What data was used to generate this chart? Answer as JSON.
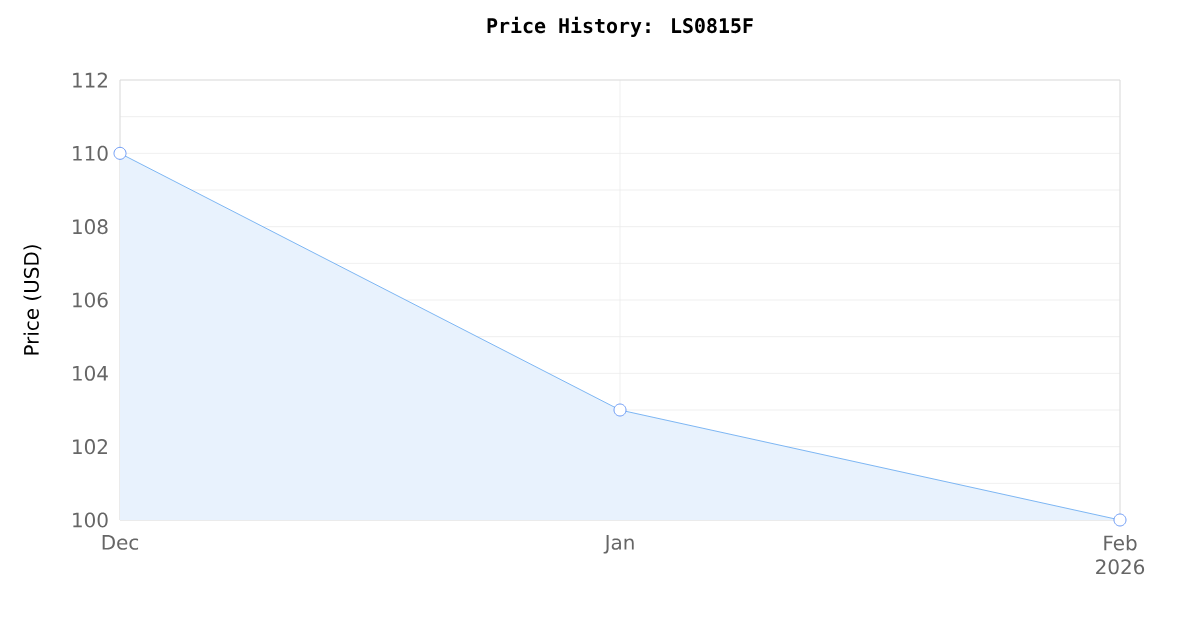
{
  "chart_data": {
    "type": "area",
    "title": "Price History: LS0815F",
    "ylabel": "Price (USD)",
    "x": [
      "2025-12",
      "2026-01",
      "2026-02"
    ],
    "series": [
      {
        "color": "#5ea5f0",
        "values": [
          110,
          103,
          100
        ]
      }
    ],
    "xlim": [
      "2025-12",
      "2026-02"
    ],
    "xticks": [
      {
        "value": "2025-12",
        "label": "Dec"
      },
      {
        "value": "2026-01",
        "label": "Jan"
      },
      {
        "value": "2026-02",
        "label": "Feb 2026"
      }
    ],
    "ylim": [
      100,
      112
    ],
    "yticks": [
      100,
      102,
      104,
      106,
      108,
      110,
      112
    ],
    "grid": true,
    "marker": "circle"
  }
}
